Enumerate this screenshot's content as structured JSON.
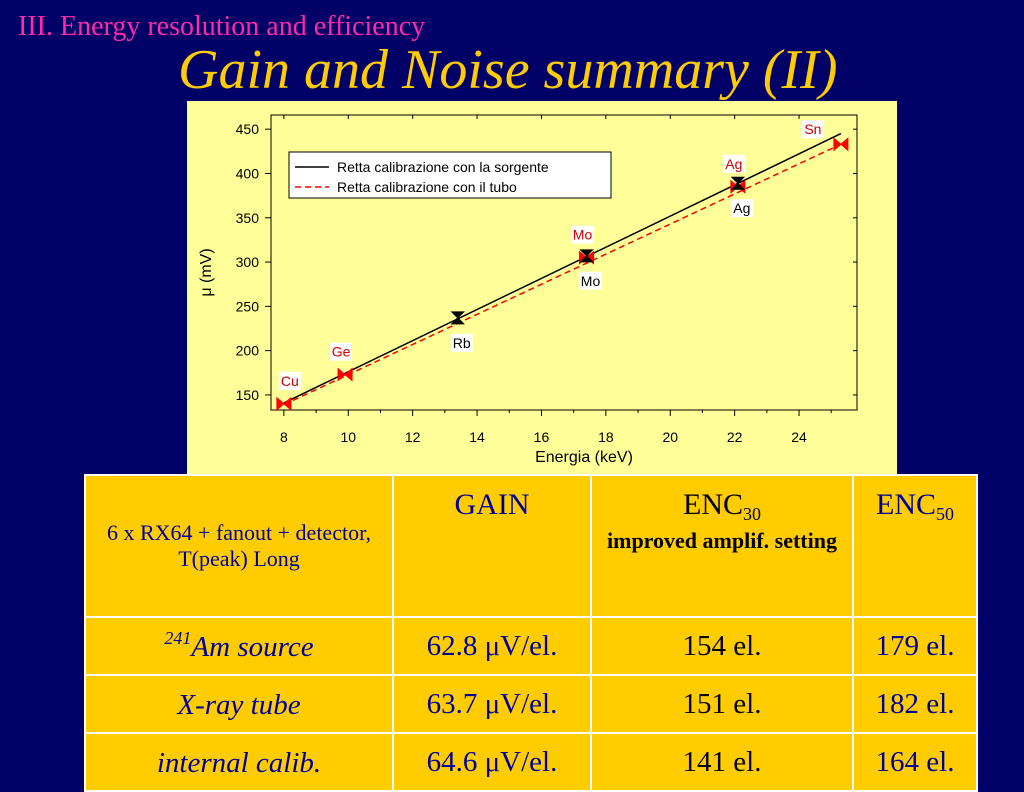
{
  "slide": {
    "section_title": "III. Energy resolution and efficiency",
    "title": "Gain and Noise summary (II)"
  },
  "chart_data": {
    "type": "line",
    "xlabel": "Energia (keV)",
    "ylabel": "μ (mV)",
    "xlim": [
      7.6,
      25.8
    ],
    "ylim": [
      133,
      466
    ],
    "x_ticks": [
      8,
      10,
      12,
      14,
      16,
      18,
      20,
      22,
      24
    ],
    "y_ticks": [
      150,
      200,
      250,
      300,
      350,
      400,
      450
    ],
    "grid": false,
    "legend": {
      "placement": "top-left",
      "entries": [
        "Retta calibrazione con la sorgente",
        "Retta calibrazione con il tubo"
      ]
    },
    "series": [
      {
        "name": "Retta calibrazione con la sorgente",
        "style": "solid",
        "color": "#000000",
        "x": [
          8.0,
          25.3
        ],
        "y": [
          141,
          445
        ],
        "points": [
          {
            "label": "Rb",
            "x": 13.4,
            "y": 237
          },
          {
            "label": "Mo",
            "x": 17.4,
            "y": 307
          },
          {
            "label": "Ag",
            "x": 22.1,
            "y": 389
          }
        ]
      },
      {
        "name": "Retta calibrazione con il tubo",
        "style": "dashed",
        "color": "#ff0000",
        "x": [
          8.0,
          25.3
        ],
        "y": [
          139,
          433
        ],
        "points": [
          {
            "label": "Cu",
            "x": 8.0,
            "y": 140
          },
          {
            "label": "Ge",
            "x": 9.9,
            "y": 173
          },
          {
            "label": "Mo",
            "x": 17.4,
            "y": 305
          },
          {
            "label": "Ag",
            "x": 22.1,
            "y": 385
          },
          {
            "label": "Sn",
            "x": 25.3,
            "y": 433
          }
        ]
      }
    ]
  },
  "table": {
    "header": {
      "desc": "6 x RX64 + fanout + detector, T(peak) Long",
      "gain": "GAIN",
      "enc30_main": "ENC",
      "enc30_sub": "30",
      "enc30_note": "improved amplif. setting",
      "enc50_main": "ENC",
      "enc50_sub": "50"
    },
    "rows": [
      {
        "label_sup": "241",
        "label": "Am source",
        "gain": "62.8 μV/el.",
        "enc30": "154 el.",
        "enc50": "179 el."
      },
      {
        "label_sup": "",
        "label": "X-ray tube",
        "gain": "63.7 μV/el.",
        "enc30": "151 el.",
        "enc50": "182 el."
      },
      {
        "label_sup": "",
        "label": "internal calib.",
        "gain": "64.6 μV/el.",
        "enc30": "141 el.",
        "enc50": "164 el."
      }
    ]
  }
}
